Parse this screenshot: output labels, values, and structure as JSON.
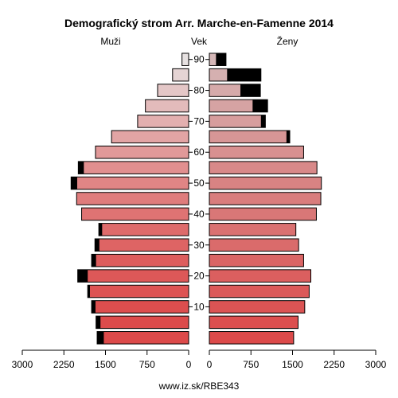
{
  "chart_data": {
    "type": "bar",
    "subtype": "population-pyramid",
    "title": "Demografický strom Arr. Marche-en-Famenne 2014",
    "left_label": "Muži",
    "center_label": "Vek",
    "right_label": "Ženy",
    "footer": "www.iz.sk/RBE343",
    "age_groups": [
      "0-4",
      "5-9",
      "10-14",
      "15-19",
      "20-24",
      "25-29",
      "30-34",
      "35-39",
      "40-44",
      "45-49",
      "50-54",
      "55-59",
      "60-64",
      "65-69",
      "70-74",
      "75-79",
      "80-84",
      "85-89",
      "90+"
    ],
    "age_tick_labels": [
      "10",
      "20",
      "30",
      "40",
      "50",
      "60",
      "70",
      "80",
      "90"
    ],
    "x_ticks_left": [
      "3000",
      "2250",
      "1500",
      "750",
      "0"
    ],
    "x_ticks_right": [
      "0",
      "750",
      "1500",
      "2250",
      "3000"
    ],
    "xlim": [
      0,
      3000
    ],
    "series": [
      {
        "name": "Muži",
        "values": [
          1650,
          1670,
          1750,
          1820,
          2000,
          1750,
          1690,
          1620,
          1930,
          2020,
          2120,
          1990,
          1680,
          1390,
          920,
          780,
          560,
          290,
          120
        ]
      },
      {
        "name": "Ženy",
        "values": [
          1520,
          1600,
          1720,
          1800,
          1830,
          1700,
          1610,
          1560,
          1930,
          2010,
          2020,
          1940,
          1700,
          1450,
          1010,
          1050,
          920,
          930,
          300
        ]
      },
      {
        "name": "Muži (excess)",
        "values": [
          120,
          80,
          70,
          40,
          180,
          80,
          80,
          60,
          0,
          0,
          110,
          100,
          0,
          0,
          0,
          0,
          0,
          0,
          0
        ]
      },
      {
        "name": "Ženy (excess)",
        "values": [
          0,
          0,
          0,
          0,
          0,
          0,
          0,
          0,
          0,
          0,
          0,
          0,
          0,
          60,
          80,
          270,
          360,
          610,
          180
        ]
      }
    ],
    "grid": false
  },
  "colors": {
    "bottom_bar": "#dc4a4a",
    "top_bar": "#e6e1e1",
    "female_pale": "#d5b7b7",
    "excess": "#000000",
    "outline": "#000000"
  }
}
